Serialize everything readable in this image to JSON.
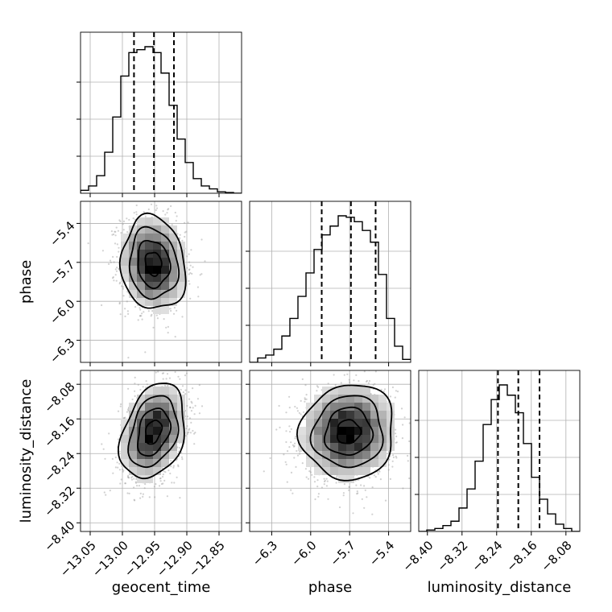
{
  "chart_data": {
    "type": "corner",
    "parameters": [
      {
        "name": "geocent_time",
        "xlabel": "geocent_time",
        "ylabel": "",
        "range": [
          -13.065,
          -12.815
        ],
        "ticks": [
          -13.05,
          -13.0,
          -12.95,
          -12.9,
          -12.85
        ],
        "tick_labels": [
          "−13.05",
          "−13.00",
          "−12.95",
          "−12.90",
          "−12.85"
        ],
        "quantiles": [
          -12.982,
          -12.951,
          -12.92
        ],
        "histogram": {
          "bins": 20,
          "counts": [
            0.02,
            0.05,
            0.12,
            0.28,
            0.52,
            0.8,
            0.96,
            0.98,
            1.0,
            0.96,
            0.82,
            0.6,
            0.37,
            0.21,
            0.1,
            0.05,
            0.03,
            0.01,
            0.005,
            0.0
          ]
        }
      },
      {
        "name": "phase",
        "xlabel": "phase",
        "ylabel": "phase",
        "range": [
          -6.47,
          -5.23
        ],
        "ticks": [
          -6.3,
          -6.0,
          -5.7,
          -5.4
        ],
        "tick_labels": [
          "−6.3",
          "−6.0",
          "−5.7",
          "−5.4"
        ],
        "quantiles": [
          -5.915,
          -5.69,
          -5.5
        ],
        "histogram": {
          "bins": 20,
          "counts": [
            0.0,
            0.03,
            0.05,
            0.09,
            0.18,
            0.3,
            0.45,
            0.61,
            0.77,
            0.87,
            0.93,
            1.0,
            0.99,
            0.96,
            0.9,
            0.82,
            0.6,
            0.3,
            0.11,
            0.02
          ]
        }
      },
      {
        "name": "luminosity_distance",
        "xlabel": "luminosity_distance",
        "ylabel": "luminosity_distance",
        "range": [
          -8.42,
          -8.048
        ],
        "ticks": [
          -8.4,
          -8.32,
          -8.24,
          -8.16,
          -8.08
        ],
        "tick_labels": [
          "−8.40",
          "−8.32",
          "−8.24",
          "−8.16",
          "−8.08"
        ],
        "quantiles": [
          -8.237,
          -8.19,
          -8.141
        ],
        "histogram": {
          "bins": 20,
          "counts": [
            0.0,
            0.01,
            0.02,
            0.04,
            0.07,
            0.16,
            0.29,
            0.48,
            0.73,
            0.9,
            1.0,
            0.93,
            0.81,
            0.6,
            0.37,
            0.22,
            0.12,
            0.05,
            0.02,
            0.0
          ]
        }
      }
    ],
    "panels_2d": [
      {
        "x": "geocent_time",
        "y": "phase",
        "center": [
          -12.952,
          -5.71
        ],
        "sigma": [
          0.025,
          0.18
        ],
        "correlation": -0.1
      },
      {
        "x": "geocent_time",
        "y": "luminosity_distance",
        "center": [
          -12.952,
          -8.19
        ],
        "sigma": [
          0.025,
          0.055
        ],
        "correlation": 0.3
      },
      {
        "x": "phase",
        "y": "luminosity_distance",
        "center": [
          -5.71,
          -8.19
        ],
        "sigma": [
          0.18,
          0.055
        ],
        "correlation": 0.05
      }
    ],
    "grid": true
  }
}
